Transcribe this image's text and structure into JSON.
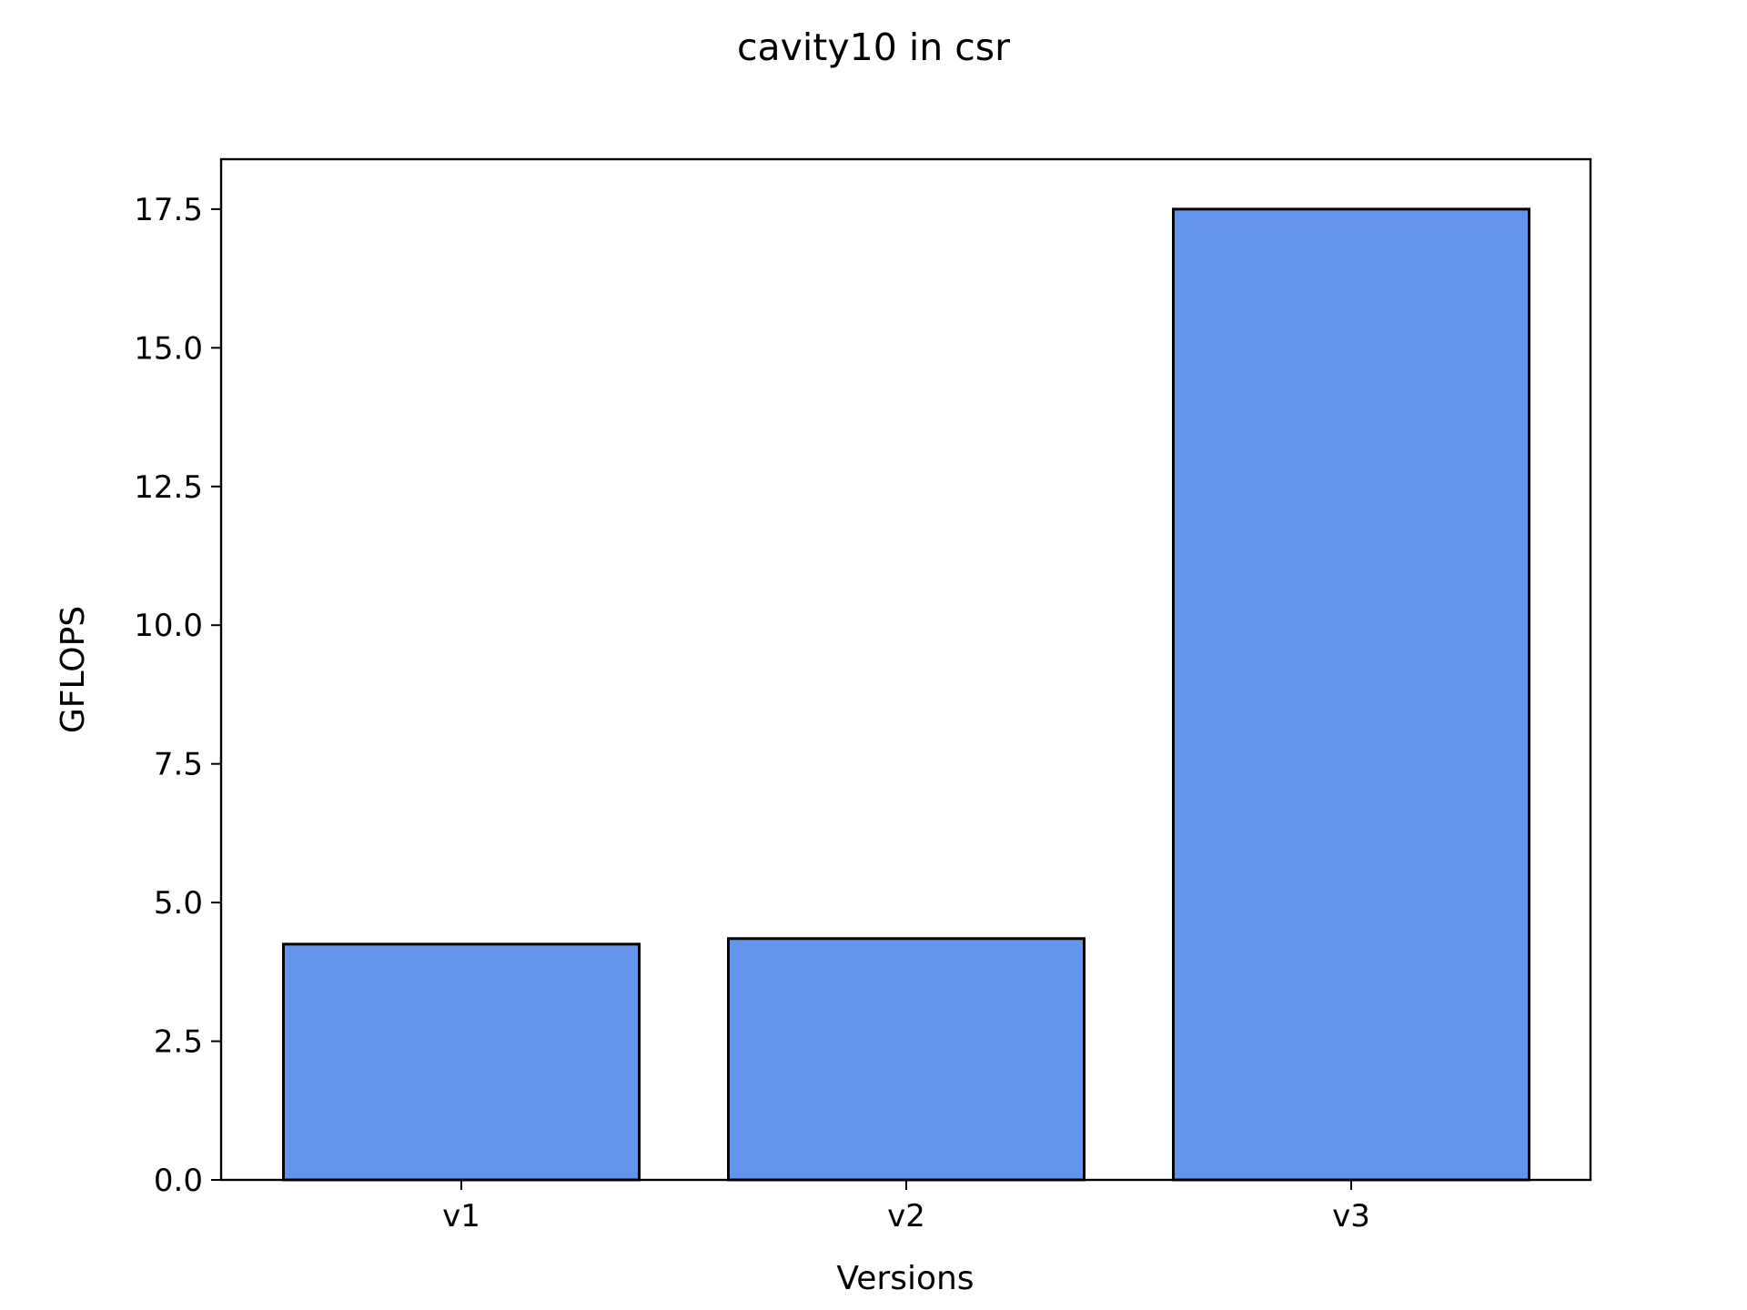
{
  "chart_data": {
    "type": "bar",
    "title": "cavity10 in csr",
    "xlabel": "Versions",
    "ylabel": "GFLOPS",
    "categories": [
      "v1",
      "v2",
      "v3"
    ],
    "values": [
      4.25,
      4.35,
      17.5
    ],
    "ylim": [
      0,
      18.4
    ],
    "yticks": [
      "0.0",
      "2.5",
      "5.0",
      "7.5",
      "10.0",
      "12.5",
      "15.0",
      "17.5"
    ],
    "grid": false,
    "bar_color": "#6495ED",
    "edge_color": "#000000"
  }
}
